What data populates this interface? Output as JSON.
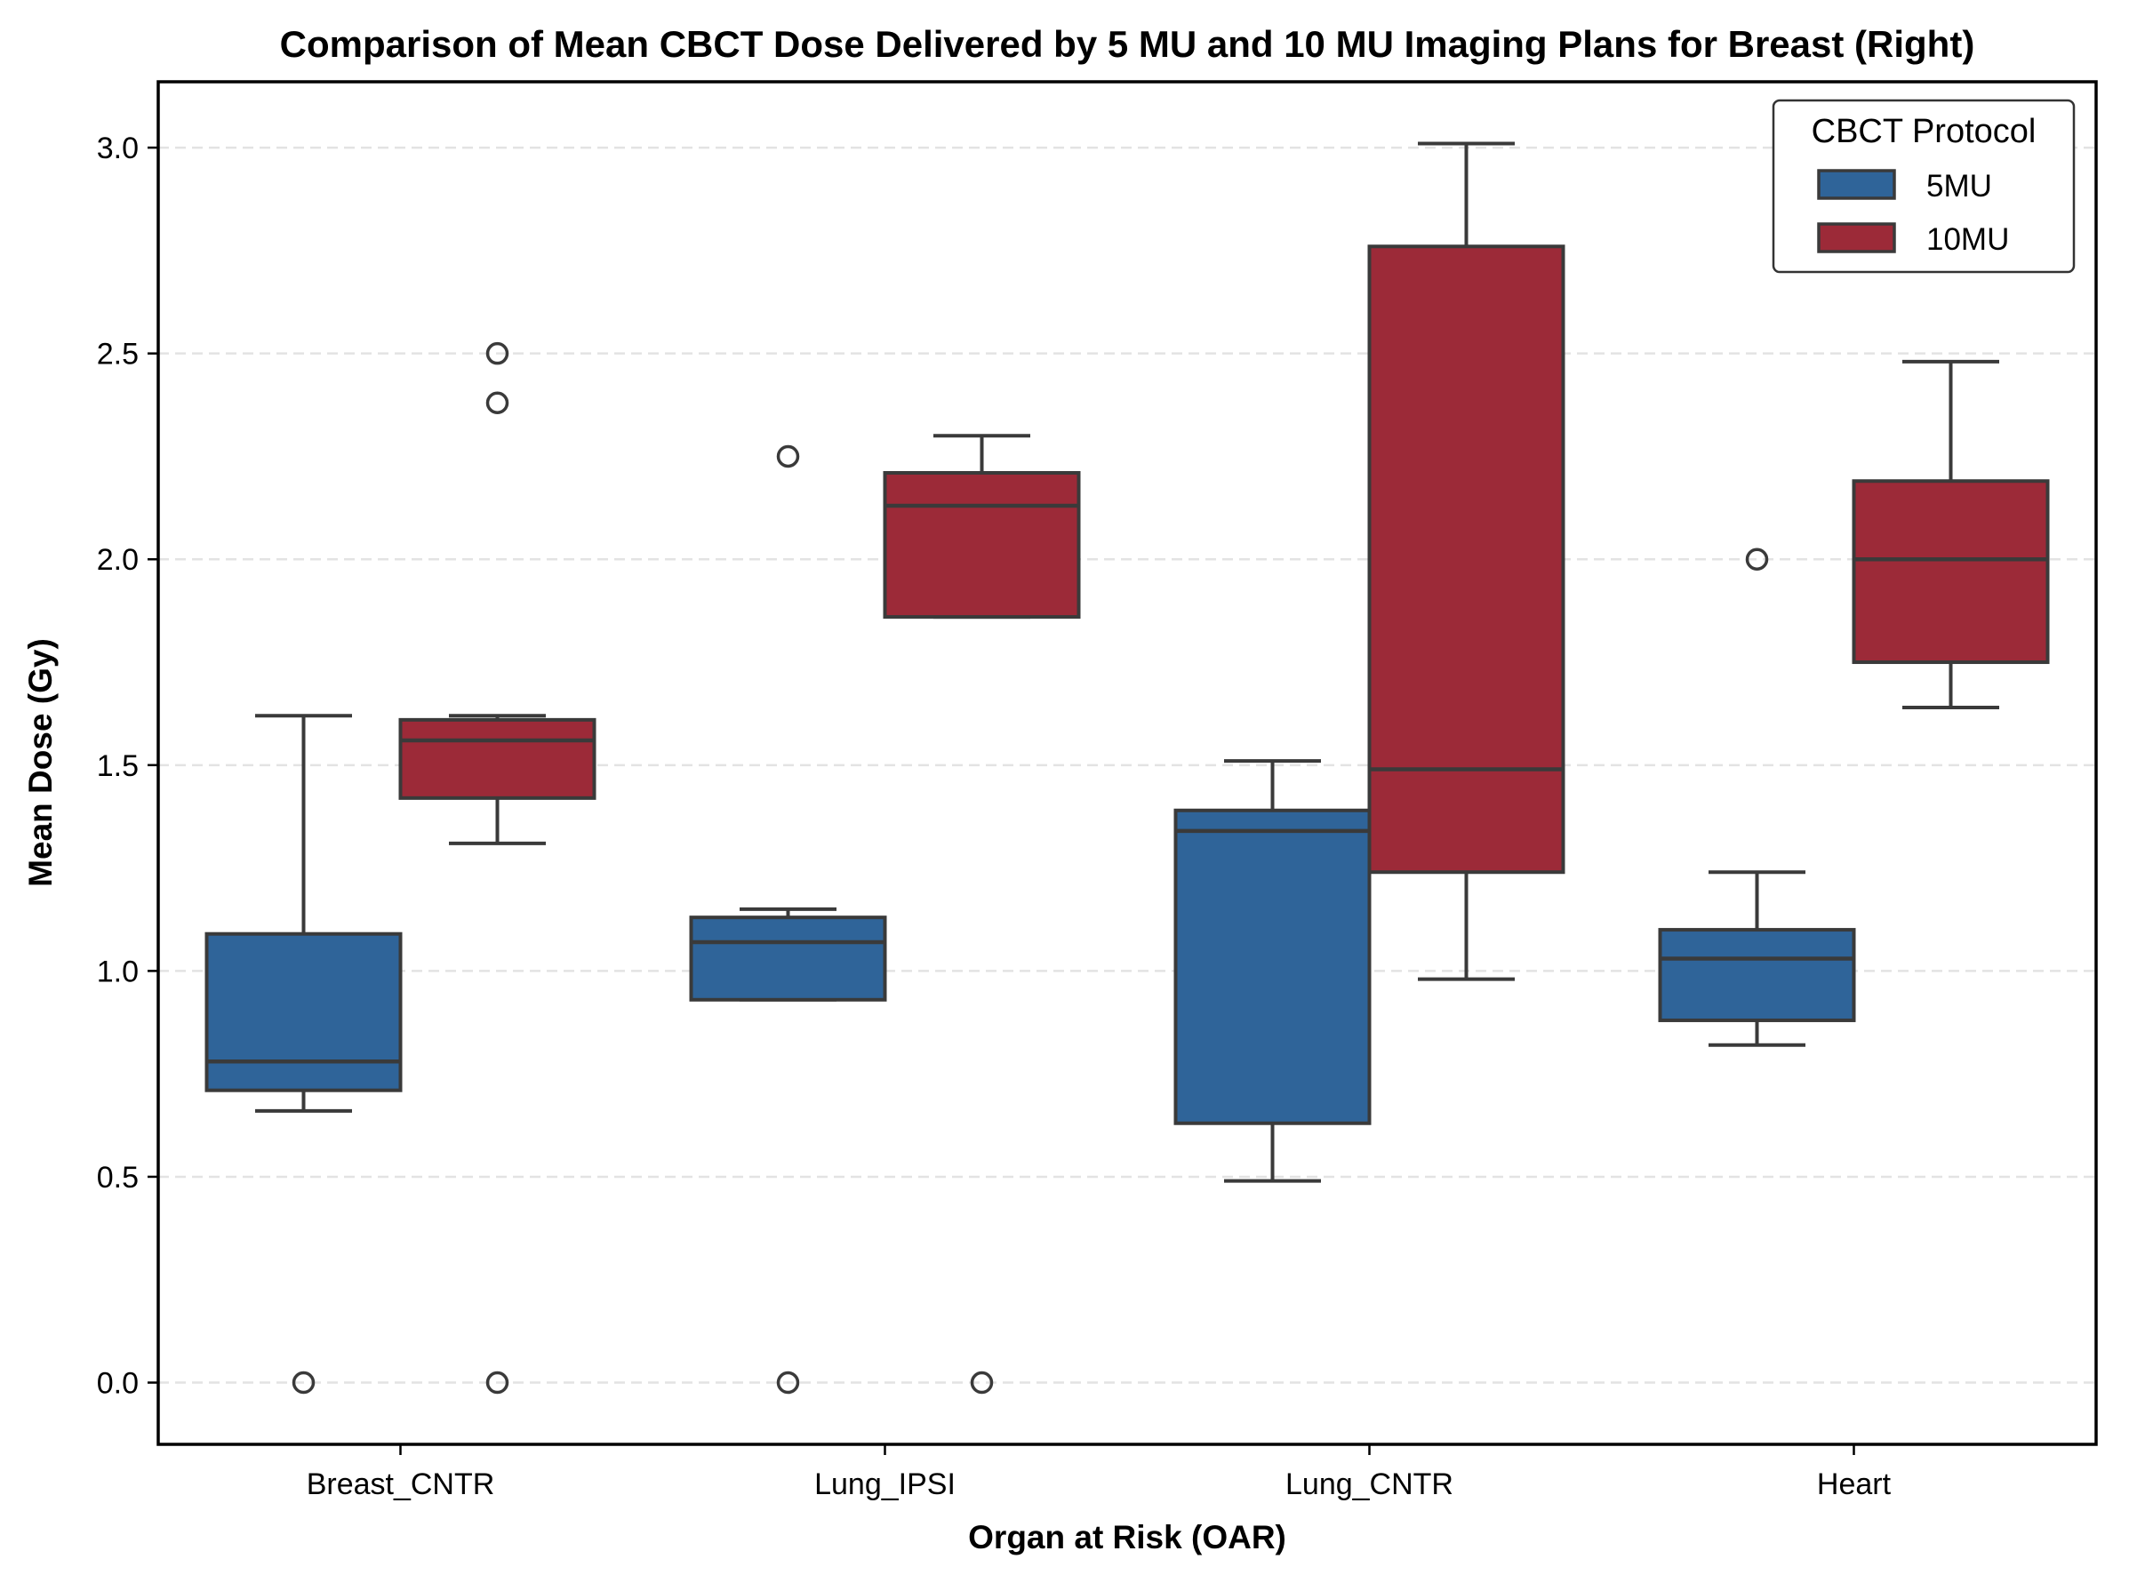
{
  "chart_data": {
    "type": "box",
    "title": "Comparison of Mean CBCT Dose Delivered by 5 MU and 10 MU Imaging Plans for Breast (Right)",
    "xlabel": "Organ at Risk (OAR)",
    "ylabel": "Mean Dose (Gy)",
    "categories": [
      "Breast_CNTR",
      "Lung_IPSI",
      "Lung_CNTR",
      "Heart"
    ],
    "ylim": [
      -0.15,
      3.16
    ],
    "yticks": [
      0.0,
      0.5,
      1.0,
      1.5,
      2.0,
      2.5,
      3.0
    ],
    "ytick_labels": [
      "0.0",
      "0.5",
      "1.0",
      "1.5",
      "2.0",
      "2.5",
      "3.0"
    ],
    "grid": "horizontal dashed",
    "legend": {
      "title": "CBCT Protocol",
      "placement": "top-right"
    },
    "colors": {
      "5MU": "#2f6499",
      "10MU": "#9c2a38",
      "edge": "#3a3a3a",
      "grid": "#e3e3e3"
    },
    "series": [
      {
        "name": "5MU",
        "boxes": [
          {
            "category": "Breast_CNTR",
            "whislo": 0.66,
            "q1": 0.71,
            "med": 0.78,
            "q3": 1.09,
            "whishi": 1.62,
            "fliers": [
              0.0
            ]
          },
          {
            "category": "Lung_IPSI",
            "whislo": 0.93,
            "q1": 0.93,
            "med": 1.07,
            "q3": 1.13,
            "whishi": 1.15,
            "fliers": [
              0.0,
              2.25
            ]
          },
          {
            "category": "Lung_CNTR",
            "whislo": 0.49,
            "q1": 0.63,
            "med": 1.34,
            "q3": 1.39,
            "whishi": 1.51,
            "fliers": []
          },
          {
            "category": "Heart",
            "whislo": 0.82,
            "q1": 0.88,
            "med": 1.03,
            "q3": 1.1,
            "whishi": 1.24,
            "fliers": [
              2.0
            ]
          }
        ]
      },
      {
        "name": "10MU",
        "boxes": [
          {
            "category": "Breast_CNTR",
            "whislo": 1.31,
            "q1": 1.42,
            "med": 1.56,
            "q3": 1.61,
            "whishi": 1.62,
            "fliers": [
              0.0,
              2.38,
              2.5
            ]
          },
          {
            "category": "Lung_IPSI",
            "whislo": 1.86,
            "q1": 1.86,
            "med": 2.13,
            "q3": 2.21,
            "whishi": 2.3,
            "fliers": [
              0.0
            ]
          },
          {
            "category": "Lung_CNTR",
            "whislo": 0.98,
            "q1": 1.24,
            "med": 1.49,
            "q3": 2.76,
            "whishi": 3.01,
            "fliers": []
          },
          {
            "category": "Heart",
            "whislo": 1.64,
            "q1": 1.75,
            "med": 2.0,
            "q3": 2.19,
            "whishi": 2.48,
            "fliers": []
          }
        ]
      }
    ]
  }
}
